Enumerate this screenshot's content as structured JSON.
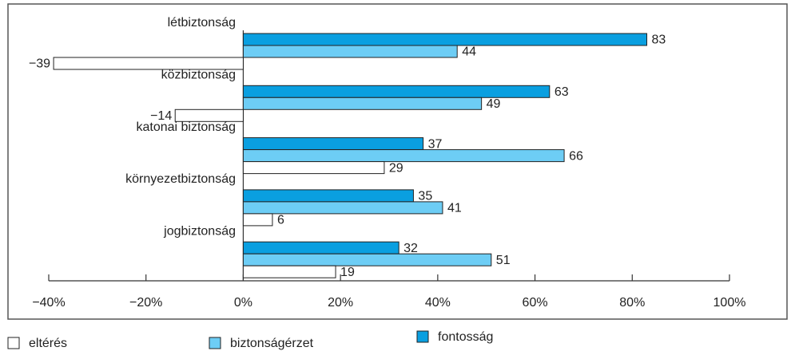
{
  "chart_data": {
    "type": "hbar",
    "categories": [
      "létbiztonság",
      "közbiztonság",
      "katonai biztonság",
      "környezetbiztonság",
      "jogbiztonság"
    ],
    "series": [
      {
        "name": "fontosság",
        "color": "#0a9fe0",
        "values": [
          83,
          63,
          37,
          35,
          32
        ]
      },
      {
        "name": "biztonságérzet",
        "color": "#6dcdf5",
        "values": [
          44,
          49,
          66,
          41,
          51
        ]
      },
      {
        "name": "eltérés",
        "color": "#ffffff",
        "values": [
          -39,
          -14,
          29,
          6,
          19
        ],
        "value_labels": [
          "−39",
          "−14",
          "29",
          "6",
          "19"
        ]
      }
    ],
    "xlim": [
      -40,
      100
    ],
    "xticks": [
      {
        "value": -40,
        "label": "−40%"
      },
      {
        "value": -20,
        "label": "−20%"
      },
      {
        "value": 0,
        "label": "0%"
      },
      {
        "value": 20,
        "label": "20%"
      },
      {
        "value": 40,
        "label": "40%"
      },
      {
        "value": 60,
        "label": "60%"
      },
      {
        "value": 80,
        "label": "80%"
      },
      {
        "value": 100,
        "label": "100%"
      }
    ],
    "legend": "bottom"
  }
}
